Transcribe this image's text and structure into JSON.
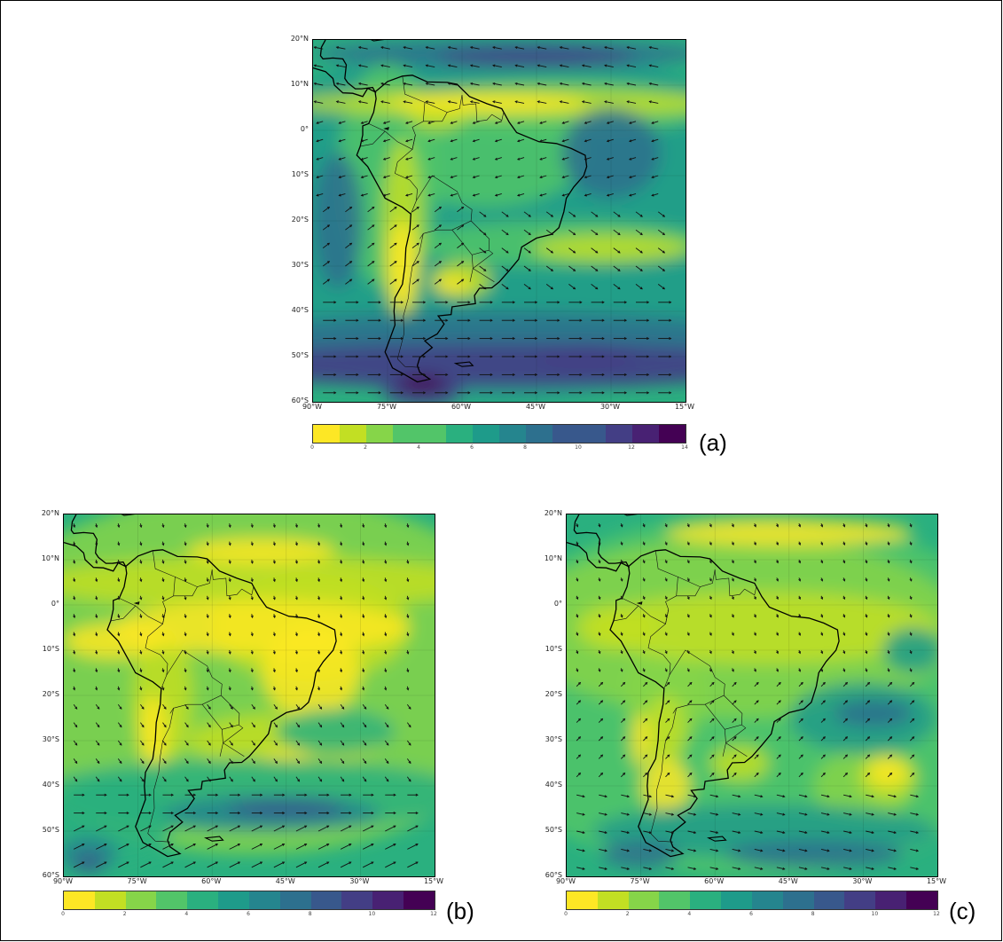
{
  "lat_labels": [
    "20°N",
    "10°N",
    "0°",
    "10°S",
    "20°S",
    "30°S",
    "40°S",
    "50°S",
    "60°S"
  ],
  "lon_labels": [
    "90°W",
    "75°W",
    "60°W",
    "45°W",
    "30°W",
    "15°W"
  ],
  "colormap": [
    "#fde725",
    "#c2df23",
    "#86d549",
    "#52c569",
    "#2ab07f",
    "#1e9b8a",
    "#25858e",
    "#2d708e",
    "#38588c",
    "#433e85",
    "#482173",
    "#440154"
  ],
  "panels": [
    {
      "id": "a",
      "label": "(a)",
      "colorbar_ticks": [
        "0",
        "2",
        "4",
        "6",
        "8",
        "10",
        "12",
        "14"
      ],
      "colorbar_range": [
        0,
        14
      ],
      "field_style": "strong-westerlies"
    },
    {
      "id": "b",
      "label": "(b)",
      "colorbar_ticks": [
        "0",
        "2",
        "4",
        "6",
        "8",
        "10",
        "12"
      ],
      "colorbar_range": [
        0,
        12
      ],
      "field_style": "mid"
    },
    {
      "id": "c",
      "label": "(c)",
      "colorbar_ticks": [
        "0",
        "2",
        "4",
        "6",
        "8",
        "10",
        "12"
      ],
      "colorbar_range": [
        0,
        12
      ],
      "field_style": "weak"
    }
  ]
}
